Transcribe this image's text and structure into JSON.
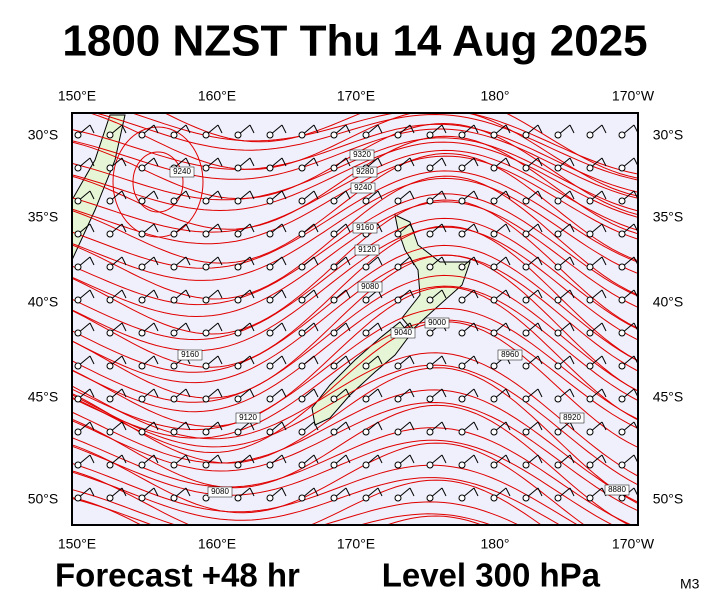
{
  "title": "1800 NZST Thu 14 Aug 2025",
  "map": {
    "lon_labels": [
      "150°E",
      "160°E",
      "170°E",
      "180°",
      "170°W"
    ],
    "lat_labels": [
      "30°S",
      "35°S",
      "40°S",
      "45°S",
      "50°S"
    ],
    "contour_labels": [
      "9320",
      "9280",
      "9240",
      "9160",
      "9120",
      "9080",
      "9040",
      "9000",
      "8960",
      "8920",
      "8880",
      "9240",
      "9160",
      "9120",
      "9080"
    ]
  },
  "footer": {
    "forecast": "Forecast +48 hr",
    "level": "Level 300 hPa",
    "model": "M3"
  }
}
